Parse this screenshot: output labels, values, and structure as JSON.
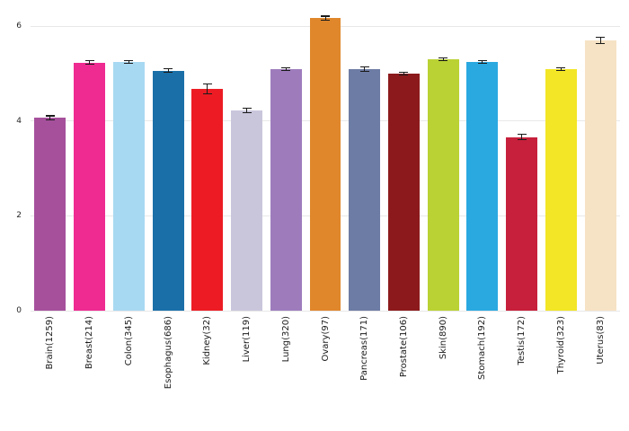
{
  "chart_data": {
    "type": "bar",
    "title": "",
    "xlabel": "",
    "ylabel": "",
    "categories": [
      "Brain(1259)",
      "Breast(214)",
      "Colon(345)",
      "Esophagus(686)",
      "Kidney(32)",
      "Liver(119)",
      "Lung(320)",
      "Ovary(97)",
      "Pancreas(171)",
      "Prostate(106)",
      "Skin(890)",
      "Stomach(192)",
      "Testis(172)",
      "Thyroid(323)",
      "Uterus(83)"
    ],
    "values": [
      4.07,
      5.23,
      5.25,
      5.06,
      4.68,
      4.22,
      5.09,
      6.17,
      5.09,
      5.0,
      5.3,
      5.25,
      3.66,
      5.09,
      5.7
    ],
    "errors": [
      0.04,
      0.04,
      0.03,
      0.04,
      0.1,
      0.05,
      0.03,
      0.04,
      0.05,
      0.03,
      0.03,
      0.03,
      0.06,
      0.03,
      0.06
    ],
    "bar_colors": [
      "#a6509c",
      "#ef2a90",
      "#a8d9f2",
      "#1a6fa8",
      "#ed1c24",
      "#c9c6dc",
      "#9e7cbc",
      "#e0872b",
      "#6d7ca4",
      "#8c1a1c",
      "#bad234",
      "#2aa9e1",
      "#c7203c",
      "#f2e626",
      "#f6e3c5"
    ],
    "ylim": [
      0,
      6.4
    ],
    "yticks": [
      0,
      2,
      4,
      6
    ],
    "grid": true,
    "gridline_color": "#e8e8e8",
    "error_bar_color": "#1a1a1a",
    "background": "#ffffff",
    "legend": "none"
  }
}
